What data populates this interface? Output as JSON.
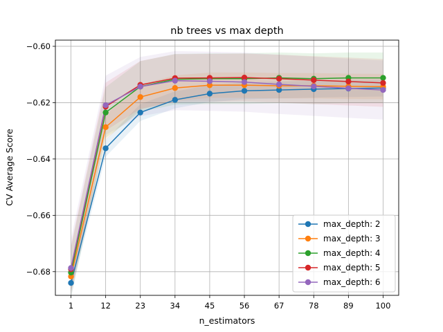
{
  "chart_data": {
    "type": "line",
    "title": "nb trees vs max depth",
    "xlabel": "n_estimators",
    "ylabel": "CV Average Score",
    "x": [
      1,
      12,
      23,
      34,
      45,
      56,
      67,
      78,
      89,
      100
    ],
    "x_ticks": [
      "1",
      "12",
      "23",
      "34",
      "45",
      "56",
      "67",
      "78",
      "89",
      "100"
    ],
    "y_ticks": [
      -0.68,
      -0.66,
      -0.64,
      -0.62,
      -0.6
    ],
    "y_tick_labels": [
      "−0.68",
      "−0.66",
      "−0.64",
      "−0.62",
      "−0.60"
    ],
    "xlim": [
      -3.95,
      104.95
    ],
    "ylim": [
      -0.6884,
      -0.5978
    ],
    "grid": true,
    "legend_position": "lower-right",
    "series": [
      {
        "name": "max_depth: 2",
        "color": "#1f77b4",
        "values": [
          -0.684,
          -0.6362,
          -0.6235,
          -0.619,
          -0.6168,
          -0.6158,
          -0.6155,
          -0.6152,
          -0.615,
          -0.6148
        ],
        "band": 0.003
      },
      {
        "name": "max_depth: 3",
        "color": "#ff7f0e",
        "values": [
          -0.6817,
          -0.6287,
          -0.618,
          -0.6148,
          -0.6138,
          -0.6138,
          -0.614,
          -0.614,
          -0.6142,
          -0.6143
        ],
        "band": 0.0045
      },
      {
        "name": "max_depth: 4",
        "color": "#2ca02c",
        "values": [
          -0.6803,
          -0.6235,
          -0.6143,
          -0.6117,
          -0.6115,
          -0.6115,
          -0.6112,
          -0.6115,
          -0.6112,
          -0.6112
        ],
        "band": 0.009
      },
      {
        "name": "max_depth: 5",
        "color": "#d62728",
        "values": [
          -0.6791,
          -0.6214,
          -0.6137,
          -0.6113,
          -0.6112,
          -0.6111,
          -0.6115,
          -0.612,
          -0.6125,
          -0.613
        ],
        "band": 0.0085
      },
      {
        "name": "max_depth: 6",
        "color": "#9467bd",
        "values": [
          -0.6787,
          -0.6209,
          -0.6143,
          -0.6122,
          -0.6124,
          -0.6127,
          -0.6135,
          -0.6142,
          -0.6149,
          -0.6155
        ],
        "band": 0.0105
      }
    ]
  }
}
